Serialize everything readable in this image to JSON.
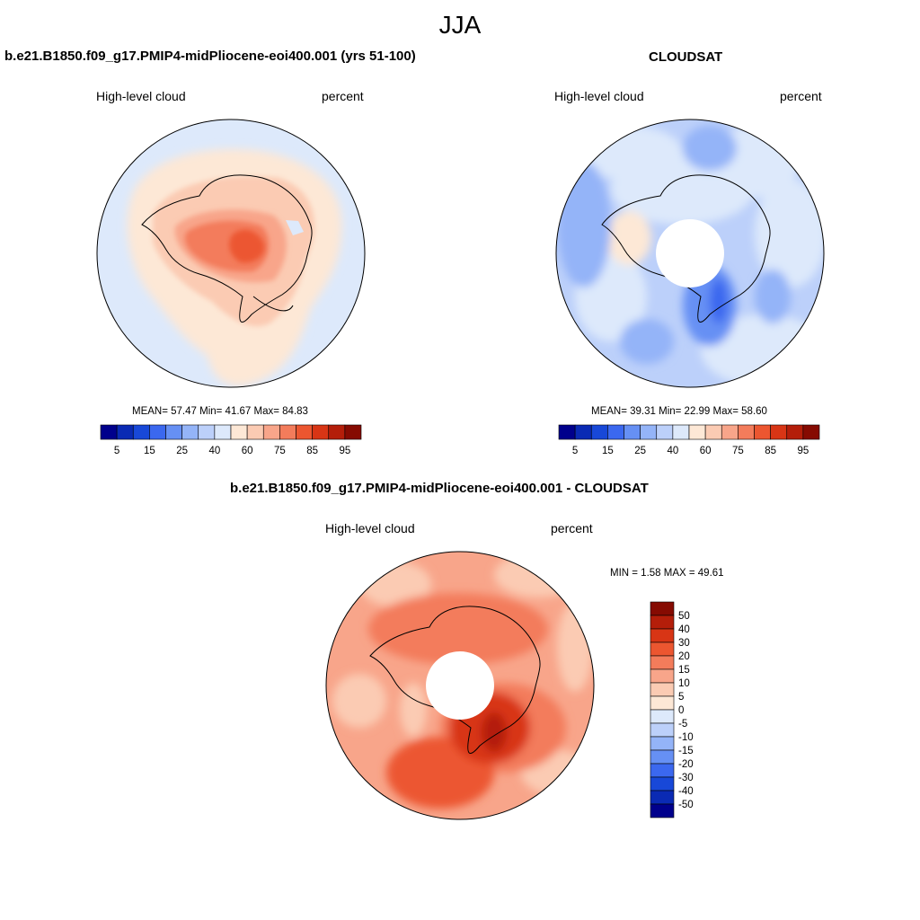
{
  "figure": {
    "season": "JJA",
    "panels": [
      {
        "title": "b.e21.B1850.f09_g17.PMIP4-midPliocene-eoi400.001 (yrs 51-100)",
        "left_label": "High-level cloud",
        "right_label": "percent",
        "stats_text": "MEAN=  57.47  Min=  41.67  Max=  84.83"
      },
      {
        "title": "CLOUDSAT",
        "left_label": "High-level cloud",
        "right_label": "percent",
        "stats_text": "MEAN=  39.31  Min=  22.99  Max=  58.60"
      },
      {
        "title": "b.e21.B1850.f09_g17.PMIP4-midPliocene-eoi400.001 - CLOUDSAT",
        "left_label": "High-level cloud",
        "right_label": "percent",
        "stats_text": "MIN =   1.58 MAX =  49.61"
      }
    ]
  },
  "chart_data": [
    {
      "type": "heatmap",
      "projection": "south-polar-stereographic",
      "title": "b.e21.B1850.f09_g17.PMIP4-midPliocene-eoi400.001 (yrs 51-100)",
      "variable": "High-level cloud",
      "units": "percent",
      "stats": {
        "mean": 57.47,
        "min": 41.67,
        "max": 84.83
      },
      "colorbar": {
        "orientation": "horizontal",
        "levels": [
          5,
          10,
          15,
          20,
          25,
          30,
          40,
          50,
          60,
          70,
          75,
          80,
          85,
          90,
          95
        ],
        "tick_labels": [
          "5",
          "15",
          "25",
          "40",
          "60",
          "75",
          "85",
          "95"
        ],
        "colors": [
          "#00008c",
          "#0a2ab4",
          "#1848d8",
          "#3b68ef",
          "#6690f4",
          "#94b4f8",
          "#bcd0fa",
          "#dde9fb",
          "#fde8d6",
          "#fbcbb3",
          "#f8a58a",
          "#f37c5b",
          "#ec5630",
          "#d83515",
          "#b41e0a",
          "#860b02"
        ]
      }
    },
    {
      "type": "heatmap",
      "projection": "south-polar-stereographic",
      "title": "CLOUDSAT",
      "variable": "High-level cloud",
      "units": "percent",
      "stats": {
        "mean": 39.31,
        "min": 22.99,
        "max": 58.6
      },
      "colorbar": {
        "orientation": "horizontal",
        "levels": [
          5,
          10,
          15,
          20,
          25,
          30,
          40,
          50,
          60,
          70,
          75,
          80,
          85,
          90,
          95
        ],
        "tick_labels": [
          "5",
          "15",
          "25",
          "40",
          "60",
          "75",
          "85",
          "95"
        ],
        "colors": [
          "#00008c",
          "#0a2ab4",
          "#1848d8",
          "#3b68ef",
          "#6690f4",
          "#94b4f8",
          "#bcd0fa",
          "#dde9fb",
          "#fde8d6",
          "#fbcbb3",
          "#f8a58a",
          "#f37c5b",
          "#ec5630",
          "#d83515",
          "#b41e0a",
          "#860b02"
        ]
      }
    },
    {
      "type": "heatmap",
      "projection": "south-polar-stereographic",
      "title": "b.e21.B1850.f09_g17.PMIP4-midPliocene-eoi400.001 - CLOUDSAT",
      "variable": "High-level cloud",
      "units": "percent",
      "stats": {
        "min": 1.58,
        "max": 49.61
      },
      "colorbar": {
        "orientation": "vertical",
        "levels": [
          -50,
          -40,
          -30,
          -20,
          -15,
          -10,
          -5,
          0,
          5,
          10,
          15,
          20,
          30,
          40,
          50
        ],
        "tick_labels": [
          "50",
          "40",
          "30",
          "20",
          "15",
          "10",
          "5",
          "0",
          "-5",
          "-10",
          "-15",
          "-20",
          "-30",
          "-40",
          "-50"
        ],
        "colors": [
          "#00008c",
          "#0a2ab4",
          "#1848d8",
          "#3b68ef",
          "#6690f4",
          "#94b4f8",
          "#bcd0fa",
          "#dde9fb",
          "#fde8d6",
          "#fbcbb3",
          "#f8a58a",
          "#f37c5b",
          "#ec5630",
          "#d83515",
          "#b41e0a",
          "#860b02"
        ]
      }
    }
  ]
}
